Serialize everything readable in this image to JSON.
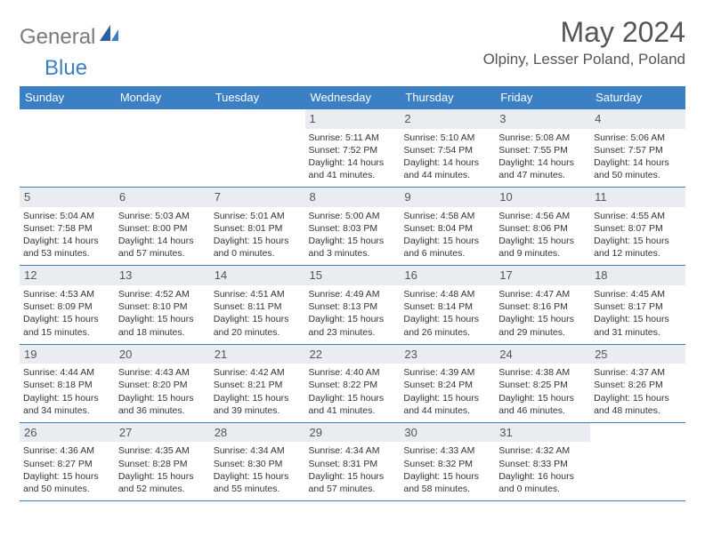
{
  "brand": {
    "word1": "General",
    "word2": "Blue"
  },
  "title": "May 2024",
  "location": "Olpiny, Lesser Poland, Poland",
  "colors": {
    "header_bg": "#3b7fc4",
    "header_text": "#ffffff",
    "daynum_bg": "#e9edf1",
    "border": "#3b7fc4",
    "title_color": "#555555",
    "logo_gray": "#7a7a7a",
    "logo_blue": "#3b7fc4"
  },
  "day_headers": [
    "Sunday",
    "Monday",
    "Tuesday",
    "Wednesday",
    "Thursday",
    "Friday",
    "Saturday"
  ],
  "weeks": [
    [
      null,
      null,
      null,
      {
        "n": "1",
        "sr": "Sunrise: 5:11 AM",
        "ss": "Sunset: 7:52 PM",
        "d1": "Daylight: 14 hours",
        "d2": "and 41 minutes."
      },
      {
        "n": "2",
        "sr": "Sunrise: 5:10 AM",
        "ss": "Sunset: 7:54 PM",
        "d1": "Daylight: 14 hours",
        "d2": "and 44 minutes."
      },
      {
        "n": "3",
        "sr": "Sunrise: 5:08 AM",
        "ss": "Sunset: 7:55 PM",
        "d1": "Daylight: 14 hours",
        "d2": "and 47 minutes."
      },
      {
        "n": "4",
        "sr": "Sunrise: 5:06 AM",
        "ss": "Sunset: 7:57 PM",
        "d1": "Daylight: 14 hours",
        "d2": "and 50 minutes."
      }
    ],
    [
      {
        "n": "5",
        "sr": "Sunrise: 5:04 AM",
        "ss": "Sunset: 7:58 PM",
        "d1": "Daylight: 14 hours",
        "d2": "and 53 minutes."
      },
      {
        "n": "6",
        "sr": "Sunrise: 5:03 AM",
        "ss": "Sunset: 8:00 PM",
        "d1": "Daylight: 14 hours",
        "d2": "and 57 minutes."
      },
      {
        "n": "7",
        "sr": "Sunrise: 5:01 AM",
        "ss": "Sunset: 8:01 PM",
        "d1": "Daylight: 15 hours",
        "d2": "and 0 minutes."
      },
      {
        "n": "8",
        "sr": "Sunrise: 5:00 AM",
        "ss": "Sunset: 8:03 PM",
        "d1": "Daylight: 15 hours",
        "d2": "and 3 minutes."
      },
      {
        "n": "9",
        "sr": "Sunrise: 4:58 AM",
        "ss": "Sunset: 8:04 PM",
        "d1": "Daylight: 15 hours",
        "d2": "and 6 minutes."
      },
      {
        "n": "10",
        "sr": "Sunrise: 4:56 AM",
        "ss": "Sunset: 8:06 PM",
        "d1": "Daylight: 15 hours",
        "d2": "and 9 minutes."
      },
      {
        "n": "11",
        "sr": "Sunrise: 4:55 AM",
        "ss": "Sunset: 8:07 PM",
        "d1": "Daylight: 15 hours",
        "d2": "and 12 minutes."
      }
    ],
    [
      {
        "n": "12",
        "sr": "Sunrise: 4:53 AM",
        "ss": "Sunset: 8:09 PM",
        "d1": "Daylight: 15 hours",
        "d2": "and 15 minutes."
      },
      {
        "n": "13",
        "sr": "Sunrise: 4:52 AM",
        "ss": "Sunset: 8:10 PM",
        "d1": "Daylight: 15 hours",
        "d2": "and 18 minutes."
      },
      {
        "n": "14",
        "sr": "Sunrise: 4:51 AM",
        "ss": "Sunset: 8:11 PM",
        "d1": "Daylight: 15 hours",
        "d2": "and 20 minutes."
      },
      {
        "n": "15",
        "sr": "Sunrise: 4:49 AM",
        "ss": "Sunset: 8:13 PM",
        "d1": "Daylight: 15 hours",
        "d2": "and 23 minutes."
      },
      {
        "n": "16",
        "sr": "Sunrise: 4:48 AM",
        "ss": "Sunset: 8:14 PM",
        "d1": "Daylight: 15 hours",
        "d2": "and 26 minutes."
      },
      {
        "n": "17",
        "sr": "Sunrise: 4:47 AM",
        "ss": "Sunset: 8:16 PM",
        "d1": "Daylight: 15 hours",
        "d2": "and 29 minutes."
      },
      {
        "n": "18",
        "sr": "Sunrise: 4:45 AM",
        "ss": "Sunset: 8:17 PM",
        "d1": "Daylight: 15 hours",
        "d2": "and 31 minutes."
      }
    ],
    [
      {
        "n": "19",
        "sr": "Sunrise: 4:44 AM",
        "ss": "Sunset: 8:18 PM",
        "d1": "Daylight: 15 hours",
        "d2": "and 34 minutes."
      },
      {
        "n": "20",
        "sr": "Sunrise: 4:43 AM",
        "ss": "Sunset: 8:20 PM",
        "d1": "Daylight: 15 hours",
        "d2": "and 36 minutes."
      },
      {
        "n": "21",
        "sr": "Sunrise: 4:42 AM",
        "ss": "Sunset: 8:21 PM",
        "d1": "Daylight: 15 hours",
        "d2": "and 39 minutes."
      },
      {
        "n": "22",
        "sr": "Sunrise: 4:40 AM",
        "ss": "Sunset: 8:22 PM",
        "d1": "Daylight: 15 hours",
        "d2": "and 41 minutes."
      },
      {
        "n": "23",
        "sr": "Sunrise: 4:39 AM",
        "ss": "Sunset: 8:24 PM",
        "d1": "Daylight: 15 hours",
        "d2": "and 44 minutes."
      },
      {
        "n": "24",
        "sr": "Sunrise: 4:38 AM",
        "ss": "Sunset: 8:25 PM",
        "d1": "Daylight: 15 hours",
        "d2": "and 46 minutes."
      },
      {
        "n": "25",
        "sr": "Sunrise: 4:37 AM",
        "ss": "Sunset: 8:26 PM",
        "d1": "Daylight: 15 hours",
        "d2": "and 48 minutes."
      }
    ],
    [
      {
        "n": "26",
        "sr": "Sunrise: 4:36 AM",
        "ss": "Sunset: 8:27 PM",
        "d1": "Daylight: 15 hours",
        "d2": "and 50 minutes."
      },
      {
        "n": "27",
        "sr": "Sunrise: 4:35 AM",
        "ss": "Sunset: 8:28 PM",
        "d1": "Daylight: 15 hours",
        "d2": "and 52 minutes."
      },
      {
        "n": "28",
        "sr": "Sunrise: 4:34 AM",
        "ss": "Sunset: 8:30 PM",
        "d1": "Daylight: 15 hours",
        "d2": "and 55 minutes."
      },
      {
        "n": "29",
        "sr": "Sunrise: 4:34 AM",
        "ss": "Sunset: 8:31 PM",
        "d1": "Daylight: 15 hours",
        "d2": "and 57 minutes."
      },
      {
        "n": "30",
        "sr": "Sunrise: 4:33 AM",
        "ss": "Sunset: 8:32 PM",
        "d1": "Daylight: 15 hours",
        "d2": "and 58 minutes."
      },
      {
        "n": "31",
        "sr": "Sunrise: 4:32 AM",
        "ss": "Sunset: 8:33 PM",
        "d1": "Daylight: 16 hours",
        "d2": "and 0 minutes."
      },
      null
    ]
  ]
}
